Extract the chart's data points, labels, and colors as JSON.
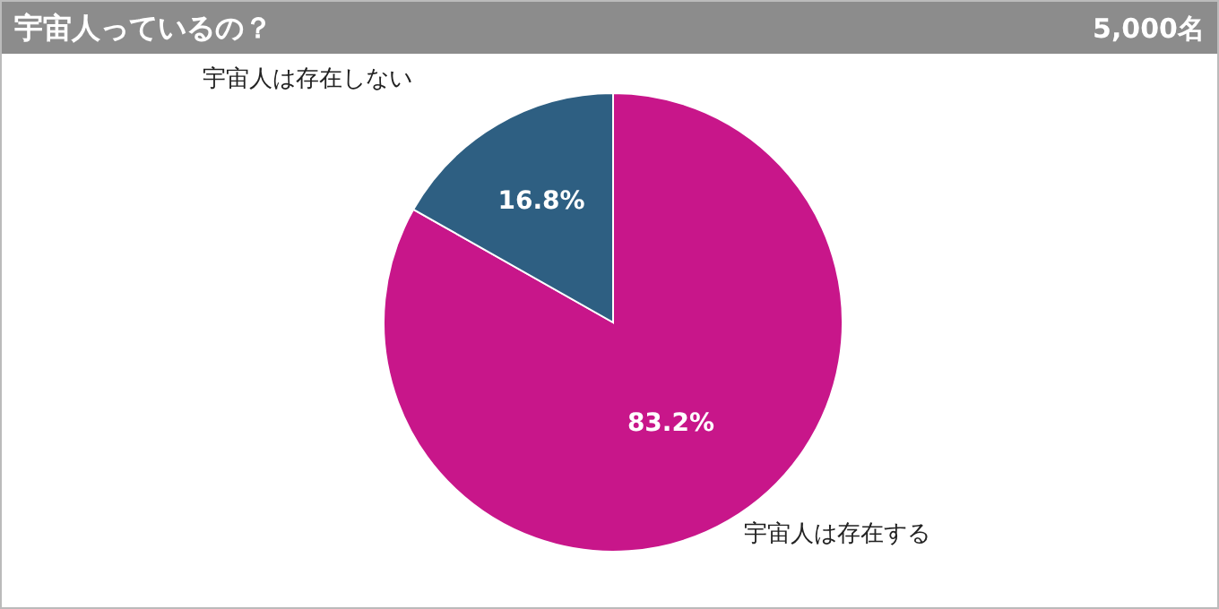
{
  "chart_data": {
    "type": "pie",
    "title": "宇宙人っているの？",
    "subtitle": "5,000名",
    "categories": [
      "宇宙人は存在する",
      "宇宙人は存在しない"
    ],
    "values": [
      83.2,
      16.8
    ],
    "colors": [
      "#c8168a",
      "#2e5f82"
    ],
    "value_labels": [
      "83.2%",
      "16.8%"
    ]
  }
}
